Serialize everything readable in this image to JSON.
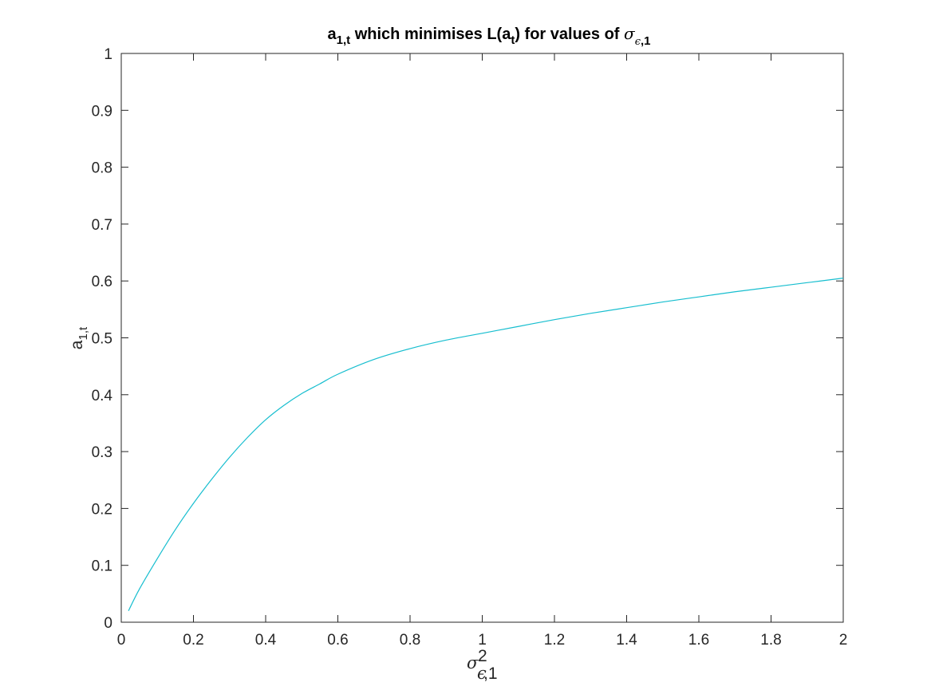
{
  "chart_data": {
    "type": "line",
    "title": {
      "text1": "a",
      "sub1": "1,t",
      "text2": " which minimises L(a",
      "sub2": "t",
      "text3": ") for values of ",
      "sigma": "σ",
      "sub3_eps": "ϵ",
      "sub3_rest": ",1"
    },
    "xlabel": {
      "sigma": "σ",
      "sup": "2",
      "sub_eps": "ϵ",
      "sub_rest": ",1"
    },
    "ylabel": {
      "text": "a",
      "sub": "1,t"
    },
    "xlim": [
      0,
      2
    ],
    "ylim": [
      0,
      1
    ],
    "x_ticks": [
      0,
      0.2,
      0.4,
      0.6,
      0.8,
      1,
      1.2,
      1.4,
      1.6,
      1.8,
      2
    ],
    "x_tick_labels": [
      "0",
      "0.2",
      "0.4",
      "0.6",
      "0.8",
      "1",
      "1.2",
      "1.4",
      "1.6",
      "1.8",
      "2"
    ],
    "y_ticks": [
      0,
      0.1,
      0.2,
      0.3,
      0.4,
      0.5,
      0.6,
      0.7,
      0.8,
      0.9,
      1
    ],
    "y_tick_labels": [
      "0",
      "0.1",
      "0.2",
      "0.3",
      "0.4",
      "0.5",
      "0.6",
      "0.7",
      "0.8",
      "0.9",
      "1"
    ],
    "grid": false,
    "series": [
      {
        "name": "a_1,t",
        "color": "#17becf",
        "x": [
          0.02,
          0.05,
          0.1,
          0.15,
          0.2,
          0.25,
          0.3,
          0.35,
          0.4,
          0.45,
          0.5,
          0.55,
          0.6,
          0.7,
          0.8,
          0.9,
          1.0,
          1.1,
          1.2,
          1.3,
          1.4,
          1.5,
          1.6,
          1.7,
          1.8,
          1.9,
          2.0
        ],
        "y": [
          0.02,
          0.058,
          0.112,
          0.163,
          0.209,
          0.251,
          0.29,
          0.325,
          0.356,
          0.381,
          0.402,
          0.419,
          0.436,
          0.462,
          0.481,
          0.496,
          0.508,
          0.52,
          0.532,
          0.543,
          0.553,
          0.563,
          0.572,
          0.581,
          0.589,
          0.597,
          0.605
        ]
      }
    ]
  }
}
